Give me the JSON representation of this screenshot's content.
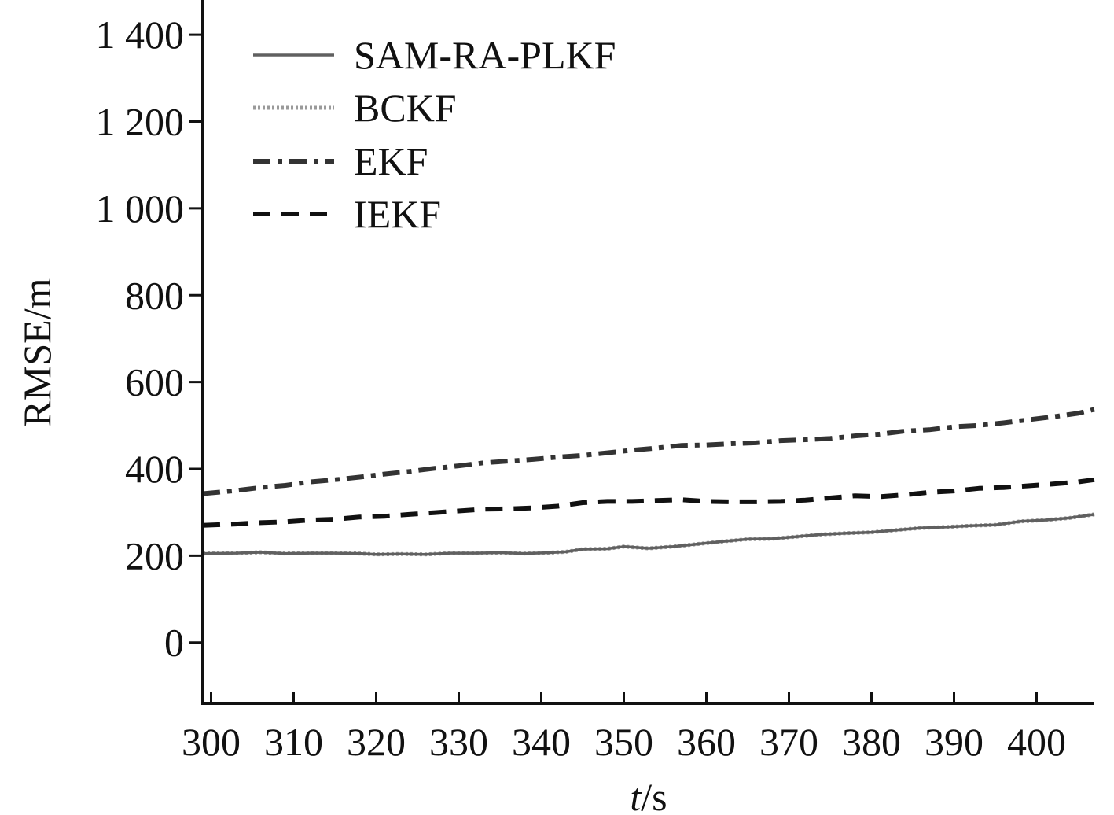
{
  "chart_data": {
    "type": "line",
    "xlabel_italic": "t",
    "xlabel_unit": "/s",
    "ylabel": "RMSE/m",
    "xlim": [
      299,
      407
    ],
    "ylim": [
      -140,
      1480
    ],
    "xticks": [
      300,
      310,
      320,
      330,
      340,
      350,
      360,
      370,
      380,
      390,
      400
    ],
    "yticks": [
      0,
      200,
      400,
      600,
      800,
      1000,
      1200,
      1400
    ],
    "ytick_labels": [
      "0",
      "200",
      "400",
      "600",
      "800",
      "1 000",
      "1 200",
      "1 400"
    ],
    "grid": false,
    "legend_position": "top-left",
    "series": [
      {
        "name": "SAM-RA-PLKF",
        "style": "solid",
        "color": "#606060",
        "x": [
          299,
          303,
          306,
          309,
          312,
          315,
          318,
          320,
          323,
          326,
          329,
          332,
          335,
          338,
          341,
          343,
          345,
          348,
          350,
          353,
          356,
          359,
          362,
          365,
          368,
          371,
          374,
          377,
          380,
          383,
          386,
          389,
          392,
          395,
          398,
          401,
          404,
          407
        ],
        "y": [
          205,
          206,
          208,
          205,
          206,
          206,
          205,
          203,
          204,
          203,
          206,
          206,
          207,
          205,
          207,
          209,
          215,
          216,
          221,
          217,
          221,
          227,
          233,
          238,
          239,
          244,
          249,
          252,
          254,
          259,
          264,
          266,
          269,
          271,
          279,
          282,
          287,
          295
        ]
      },
      {
        "name": "BCKF",
        "style": "dotted",
        "color": "#9a9a9a",
        "x": [
          299,
          303,
          306,
          309,
          312,
          315,
          318,
          320,
          323,
          326,
          329,
          332,
          335,
          338,
          341,
          343,
          345,
          348,
          350,
          353,
          356,
          359,
          362,
          365,
          368,
          371,
          374,
          377,
          380,
          383,
          386,
          389,
          392,
          395,
          398,
          401,
          404,
          407
        ],
        "y": [
          205,
          206,
          208,
          205,
          206,
          206,
          205,
          203,
          204,
          203,
          206,
          206,
          207,
          205,
          207,
          209,
          215,
          216,
          221,
          217,
          221,
          227,
          233,
          238,
          239,
          244,
          249,
          252,
          254,
          259,
          264,
          266,
          269,
          271,
          279,
          282,
          287,
          295
        ]
      },
      {
        "name": "EKF",
        "style": "dashdot",
        "color": "#333333",
        "x": [
          299,
          303,
          306,
          309,
          312,
          315,
          318,
          321,
          324,
          327,
          330,
          333,
          336,
          339,
          342,
          345,
          348,
          351,
          354,
          357,
          360,
          363,
          366,
          369,
          372,
          375,
          378,
          381,
          384,
          387,
          390,
          393,
          396,
          399,
          402,
          405,
          407
        ],
        "y": [
          343,
          350,
          357,
          362,
          370,
          375,
          381,
          388,
          394,
          401,
          407,
          414,
          418,
          422,
          427,
          431,
          437,
          443,
          448,
          454,
          455,
          458,
          460,
          465,
          467,
          470,
          476,
          480,
          487,
          490,
          497,
          500,
          506,
          513,
          520,
          528,
          537
        ]
      },
      {
        "name": "IEKF",
        "style": "dashed",
        "color": "#111111",
        "x": [
          299,
          303,
          306,
          309,
          312,
          315,
          318,
          321,
          324,
          327,
          330,
          333,
          336,
          339,
          342,
          345,
          348,
          351,
          354,
          357,
          360,
          363,
          366,
          369,
          372,
          375,
          378,
          381,
          384,
          387,
          390,
          393,
          396,
          399,
          402,
          405,
          407
        ],
        "y": [
          270,
          273,
          276,
          278,
          282,
          284,
          289,
          291,
          295,
          299,
          303,
          307,
          308,
          310,
          314,
          322,
          325,
          325,
          327,
          329,
          325,
          324,
          324,
          325,
          328,
          333,
          338,
          336,
          340,
          346,
          349,
          355,
          357,
          361,
          365,
          370,
          375
        ]
      }
    ]
  }
}
